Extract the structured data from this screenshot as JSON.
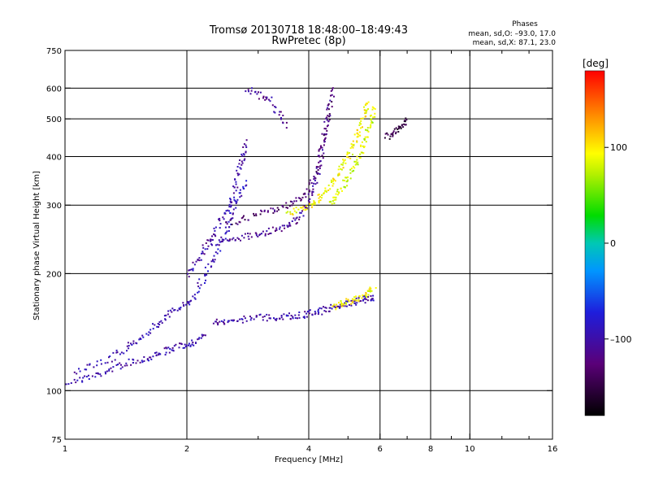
{
  "header": {
    "title": "Tromsø 20130718 18:48:00–18:49:43",
    "subtitle": "RwPretec (8p)",
    "phases_title": "Phases",
    "phases_o": "mean, sd,O: –93.0, 17.0",
    "phases_x": "mean, sd,X:  87.1, 23.0"
  },
  "chart_data": {
    "type": "scatter",
    "title": "Tromsø 20130718 18:48:00–18:49:43",
    "subtitle": "RwPretec (8p)",
    "xlabel": "Frequency [MHz]",
    "ylabel": "Stationary phase Virtual Height [km]",
    "x_scale": "log",
    "y_scale": "log",
    "xlim": [
      1,
      16
    ],
    "ylim": [
      75,
      750
    ],
    "x_ticks": [
      1,
      2,
      4,
      6,
      8,
      10,
      16
    ],
    "x_tick_labels": [
      "1",
      "2",
      "4",
      "6",
      "8",
      "10",
      "16"
    ],
    "x_grid": [
      2,
      4,
      6,
      8,
      10
    ],
    "x_minor": [
      3,
      5,
      7,
      9,
      12,
      14
    ],
    "y_ticks": [
      75,
      100,
      200,
      300,
      400,
      500,
      600,
      750
    ],
    "y_tick_labels": [
      "75",
      "100",
      "200",
      "300",
      "400",
      "500",
      "600",
      "750"
    ],
    "y_grid": [
      100,
      200,
      300,
      400,
      500,
      600
    ],
    "grid": true,
    "colorbar": {
      "label": "[deg]",
      "range": [
        -180,
        180
      ],
      "ticks": [
        100,
        0,
        -100
      ],
      "tick_labels": [
        "100",
        "0",
        "–100"
      ]
    },
    "traces": [
      {
        "x": [
          1.0,
          1.2,
          1.4,
          1.6,
          1.8,
          2.0,
          2.2
        ],
        "height": [
          105,
          110,
          118,
          122,
          128,
          132,
          138
        ],
        "phase": -100
      },
      {
        "x": [
          1.05,
          1.3,
          1.5,
          1.7,
          1.9,
          2.1
        ],
        "height": [
          112,
          122,
          135,
          150,
          165,
          175
        ],
        "phase": -95
      },
      {
        "x": [
          2.0,
          2.2,
          2.4,
          2.6,
          2.7,
          2.8
        ],
        "height": [
          200,
          230,
          270,
          320,
          380,
          440
        ],
        "phase": -100
      },
      {
        "x": [
          2.1,
          2.3,
          2.5,
          2.6,
          2.8
        ],
        "height": [
          180,
          215,
          260,
          300,
          350
        ],
        "phase": -90
      },
      {
        "x": [
          2.2,
          2.6,
          3.0,
          3.4,
          3.8,
          4.1,
          4.3,
          4.5
        ],
        "height": [
          240,
          245,
          255,
          262,
          280,
          330,
          420,
          560
        ],
        "phase": -110
      },
      {
        "x": [
          2.5,
          3.0,
          3.5,
          3.9,
          4.2,
          4.4,
          4.6
        ],
        "height": [
          270,
          285,
          300,
          320,
          380,
          480,
          620
        ],
        "phase": -130
      },
      {
        "x": [
          3.5,
          4.0,
          4.3,
          4.6,
          4.9,
          5.2,
          5.4,
          5.6
        ],
        "height": [
          285,
          300,
          320,
          350,
          390,
          440,
          500,
          560
        ],
        "phase": 95
      },
      {
        "x": [
          4.5,
          4.8,
          5.1,
          5.4,
          5.6,
          5.8
        ],
        "height": [
          300,
          330,
          370,
          420,
          480,
          540
        ],
        "phase": 80
      },
      {
        "x": [
          2.3,
          2.6,
          3.0,
          3.4,
          3.8,
          4.2,
          4.6,
          5.0,
          5.4,
          5.8
        ],
        "height": [
          150,
          152,
          155,
          155,
          157,
          160,
          165,
          168,
          172,
          175
        ],
        "phase": -100
      },
      {
        "x": [
          4.6,
          5.0,
          5.4,
          5.8
        ],
        "height": [
          165,
          170,
          175,
          185
        ],
        "phase": 95
      },
      {
        "x": [
          6.2,
          6.6,
          7.0
        ],
        "height": [
          450,
          470,
          500
        ],
        "phase": -150
      },
      {
        "x": [
          2.8,
          3.2,
          3.5
        ],
        "height": [
          600,
          560,
          480
        ],
        "phase": -110
      }
    ]
  }
}
